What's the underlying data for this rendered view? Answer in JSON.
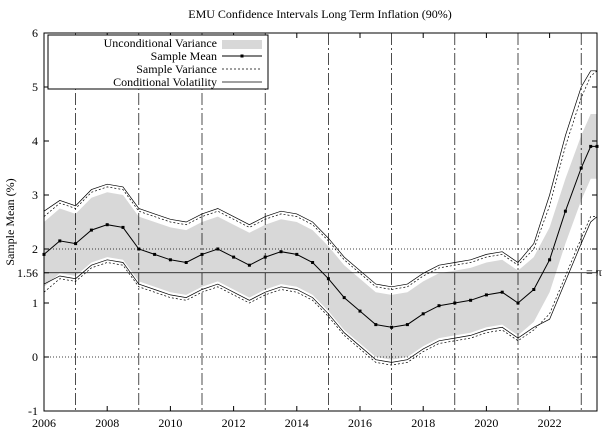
{
  "chart_data": {
    "type": "line",
    "title": "EMU Confidence Intervals Long Term Inflation (90%)",
    "xlabel": "",
    "ylabel": "Sample Mean (%)",
    "xlim": [
      2006,
      2023.5
    ],
    "ylim": [
      -1,
      6
    ],
    "x_ticks": [
      2006,
      2008,
      2010,
      2012,
      2014,
      2016,
      2018,
      2020,
      2022
    ],
    "y_ticks": [
      -1,
      0,
      1,
      2,
      3,
      4,
      5,
      6
    ],
    "y_special_tick": {
      "value": 1.56,
      "label": "1.56"
    },
    "pi_line": {
      "value": 1.56,
      "label": "= π"
    },
    "horizontal_dotted_lines": [
      0,
      2
    ],
    "vertical_dashdot_lines": [
      2007,
      2009,
      2011,
      2013,
      2015,
      2017,
      2019,
      2021,
      2023
    ],
    "grid": false,
    "legend_position": "top-left",
    "legend": [
      {
        "key": "band",
        "name": "Unconditional Variance"
      },
      {
        "key": "mean",
        "name": "Sample Mean"
      },
      {
        "key": "sample",
        "name": "Sample Variance"
      },
      {
        "key": "cond",
        "name": "Conditional Volatility"
      }
    ],
    "x": [
      2006.0,
      2006.5,
      2007.0,
      2007.5,
      2008.0,
      2008.5,
      2009.0,
      2009.5,
      2010.0,
      2010.5,
      2011.0,
      2011.5,
      2012.0,
      2012.5,
      2013.0,
      2013.5,
      2014.0,
      2014.5,
      2015.0,
      2015.5,
      2016.0,
      2016.5,
      2017.0,
      2017.5,
      2018.0,
      2018.5,
      2019.0,
      2019.5,
      2020.0,
      2020.5,
      2021.0,
      2021.5,
      2022.0,
      2022.5,
      2023.0,
      2023.3,
      2023.5
    ],
    "series": [
      {
        "key": "mean",
        "name": "Sample Mean",
        "values": [
          1.9,
          2.15,
          2.1,
          2.35,
          2.45,
          2.4,
          2.0,
          1.9,
          1.8,
          1.75,
          1.9,
          2.0,
          1.85,
          1.7,
          1.85,
          1.95,
          1.9,
          1.75,
          1.45,
          1.1,
          0.85,
          0.6,
          0.55,
          0.6,
          0.8,
          0.95,
          1.0,
          1.05,
          1.15,
          1.2,
          1.0,
          1.25,
          1.8,
          2.7,
          3.5,
          3.9,
          3.9
        ]
      },
      {
        "key": "band_upper",
        "name": "Unconditional Variance upper",
        "values": [
          2.5,
          2.75,
          2.65,
          2.95,
          3.05,
          3.0,
          2.6,
          2.5,
          2.4,
          2.35,
          2.5,
          2.6,
          2.45,
          2.3,
          2.45,
          2.55,
          2.5,
          2.35,
          2.05,
          1.7,
          1.45,
          1.2,
          1.15,
          1.2,
          1.4,
          1.55,
          1.6,
          1.65,
          1.75,
          1.8,
          1.6,
          1.85,
          2.4,
          3.3,
          4.1,
          4.5,
          4.5
        ]
      },
      {
        "key": "band_lower",
        "name": "Unconditional Variance lower",
        "values": [
          1.3,
          1.55,
          1.5,
          1.75,
          1.85,
          1.8,
          1.4,
          1.3,
          1.2,
          1.15,
          1.3,
          1.4,
          1.25,
          1.1,
          1.25,
          1.35,
          1.3,
          1.15,
          0.85,
          0.5,
          0.25,
          0.0,
          -0.05,
          0.0,
          0.2,
          0.35,
          0.4,
          0.45,
          0.55,
          0.6,
          0.4,
          0.65,
          1.2,
          2.1,
          2.9,
          3.3,
          3.3
        ]
      },
      {
        "key": "sample_upper",
        "name": "Sample Variance upper",
        "values": [
          2.6,
          2.85,
          2.75,
          3.05,
          3.15,
          3.1,
          2.7,
          2.6,
          2.5,
          2.45,
          2.6,
          2.7,
          2.55,
          2.4,
          2.55,
          2.65,
          2.6,
          2.45,
          2.15,
          1.8,
          1.55,
          1.3,
          1.25,
          1.3,
          1.5,
          1.65,
          1.7,
          1.75,
          1.85,
          1.9,
          1.7,
          2.0,
          2.8,
          3.9,
          4.8,
          5.2,
          5.3
        ]
      },
      {
        "key": "sample_lower",
        "name": "Sample Variance lower",
        "values": [
          1.2,
          1.45,
          1.4,
          1.65,
          1.75,
          1.7,
          1.3,
          1.2,
          1.1,
          1.05,
          1.2,
          1.3,
          1.15,
          1.0,
          1.15,
          1.25,
          1.2,
          1.05,
          0.75,
          0.4,
          0.15,
          -0.1,
          -0.15,
          -0.1,
          0.1,
          0.25,
          0.3,
          0.35,
          0.45,
          0.5,
          0.3,
          0.5,
          0.8,
          1.5,
          2.2,
          2.6,
          2.6
        ]
      },
      {
        "key": "cond_upper",
        "name": "Conditional Volatility upper",
        "values": [
          2.7,
          2.9,
          2.8,
          3.1,
          3.2,
          3.15,
          2.75,
          2.65,
          2.55,
          2.5,
          2.65,
          2.75,
          2.6,
          2.45,
          2.6,
          2.7,
          2.65,
          2.5,
          2.2,
          1.85,
          1.6,
          1.35,
          1.3,
          1.35,
          1.55,
          1.7,
          1.75,
          1.8,
          1.9,
          1.95,
          1.75,
          2.1,
          3.0,
          4.1,
          5.0,
          5.3,
          5.3
        ]
      },
      {
        "key": "cond_lower",
        "name": "Conditional Volatility lower",
        "values": [
          1.35,
          1.5,
          1.45,
          1.7,
          1.8,
          1.75,
          1.35,
          1.25,
          1.15,
          1.1,
          1.25,
          1.35,
          1.2,
          1.05,
          1.2,
          1.3,
          1.25,
          1.1,
          0.8,
          0.45,
          0.2,
          -0.05,
          -0.1,
          -0.05,
          0.15,
          0.3,
          0.35,
          0.4,
          0.5,
          0.55,
          0.35,
          0.55,
          0.7,
          1.4,
          2.1,
          2.5,
          2.6
        ]
      }
    ]
  }
}
